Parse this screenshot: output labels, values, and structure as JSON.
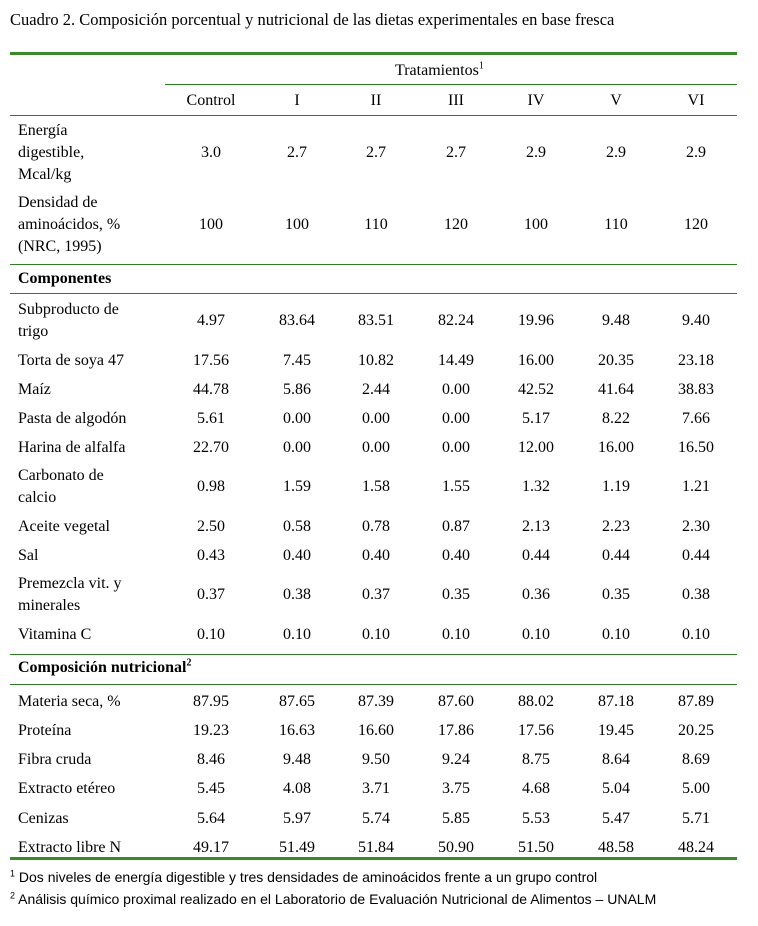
{
  "caption": "Cuadro 2. Composición porcentual y nutricional de las dietas experimentales en base fresca",
  "header": {
    "group": "Tratamientos",
    "group_sup": "1",
    "columns": [
      "Control",
      "I",
      "II",
      "III",
      "IV",
      "V",
      "VI"
    ]
  },
  "top_rows": [
    {
      "label": [
        "Energía",
        "digestible,",
        "Mcal/kg"
      ],
      "values": [
        "3.0",
        "2.7",
        "2.7",
        "2.7",
        "2.9",
        "2.9",
        "2.9"
      ]
    },
    {
      "label": [
        "Densidad de",
        "aminoácidos, %",
        "(NRC, 1995)"
      ],
      "values": [
        "100",
        "100",
        "110",
        "120",
        "100",
        "110",
        "120"
      ]
    }
  ],
  "section_components": {
    "title": "Componentes"
  },
  "components": [
    {
      "label": [
        "Subproducto de",
        "trigo"
      ],
      "values": [
        "4.97",
        "83.64",
        "83.51",
        "82.24",
        "19.96",
        "9.48",
        "9.40"
      ]
    },
    {
      "label": [
        "Torta de soya 47"
      ],
      "values": [
        "17.56",
        "7.45",
        "10.82",
        "14.49",
        "16.00",
        "20.35",
        "23.18"
      ]
    },
    {
      "label": [
        "Maíz"
      ],
      "values": [
        "44.78",
        "5.86",
        "2.44",
        "0.00",
        "42.52",
        "41.64",
        "38.83"
      ]
    },
    {
      "label": [
        "Pasta de algodón"
      ],
      "values": [
        "5.61",
        "0.00",
        "0.00",
        "0.00",
        "5.17",
        "8.22",
        "7.66"
      ]
    },
    {
      "label": [
        "Harina de alfalfa"
      ],
      "values": [
        "22.70",
        "0.00",
        "0.00",
        "0.00",
        "12.00",
        "16.00",
        "16.50"
      ]
    },
    {
      "label": [
        "Carbonato de",
        "calcio"
      ],
      "values": [
        "0.98",
        "1.59",
        "1.58",
        "1.55",
        "1.32",
        "1.19",
        "1.21"
      ]
    },
    {
      "label": [
        "Aceite vegetal"
      ],
      "values": [
        "2.50",
        "0.58",
        "0.78",
        "0.87",
        "2.13",
        "2.23",
        "2.30"
      ]
    },
    {
      "label": [
        "Sal"
      ],
      "values": [
        "0.43",
        "0.40",
        "0.40",
        "0.40",
        "0.44",
        "0.44",
        "0.44"
      ]
    },
    {
      "label": [
        "Premezcla vit. y",
        "minerales"
      ],
      "values": [
        "0.37",
        "0.38",
        "0.37",
        "0.35",
        "0.36",
        "0.35",
        "0.38"
      ]
    },
    {
      "label": [
        "Vitamina C"
      ],
      "values": [
        "0.10",
        "0.10",
        "0.10",
        "0.10",
        "0.10",
        "0.10",
        "0.10"
      ]
    }
  ],
  "section_nutrition": {
    "title": "Composición nutricional",
    "sup": "2"
  },
  "nutrition": [
    {
      "label": [
        "Materia seca, %"
      ],
      "values": [
        "87.95",
        "87.65",
        "87.39",
        "87.60",
        "88.02",
        "87.18",
        "87.89"
      ]
    },
    {
      "label": [
        "Proteína"
      ],
      "values": [
        "19.23",
        "16.63",
        "16.60",
        "17.86",
        "17.56",
        "19.45",
        "20.25"
      ]
    },
    {
      "label": [
        "Fibra cruda"
      ],
      "values": [
        "8.46",
        "9.48",
        "9.50",
        "9.24",
        "8.75",
        "8.64",
        "8.69"
      ]
    },
    {
      "label": [
        "Extracto etéreo"
      ],
      "values": [
        "5.45",
        "4.08",
        "3.71",
        "3.75",
        "4.68",
        "5.04",
        "5.00"
      ]
    },
    {
      "label": [
        "Cenizas"
      ],
      "values": [
        "5.64",
        "5.97",
        "5.74",
        "5.85",
        "5.53",
        "5.47",
        "5.71"
      ]
    },
    {
      "label": [
        "Extracto libre N"
      ],
      "values": [
        "49.17",
        "51.49",
        "51.84",
        "50.90",
        "51.50",
        "48.58",
        "48.24"
      ]
    }
  ],
  "footnotes": [
    {
      "sup": "1",
      "text": "Dos niveles de energía digestible y tres densidades de aminoácidos frente a un grupo control"
    },
    {
      "sup": "2",
      "text": "Análisis químico proximal realizado en el Laboratorio de Evaluación Nutricional de Alimentos – UNALM"
    }
  ],
  "colors": {
    "rule": "#3a8a2a"
  }
}
